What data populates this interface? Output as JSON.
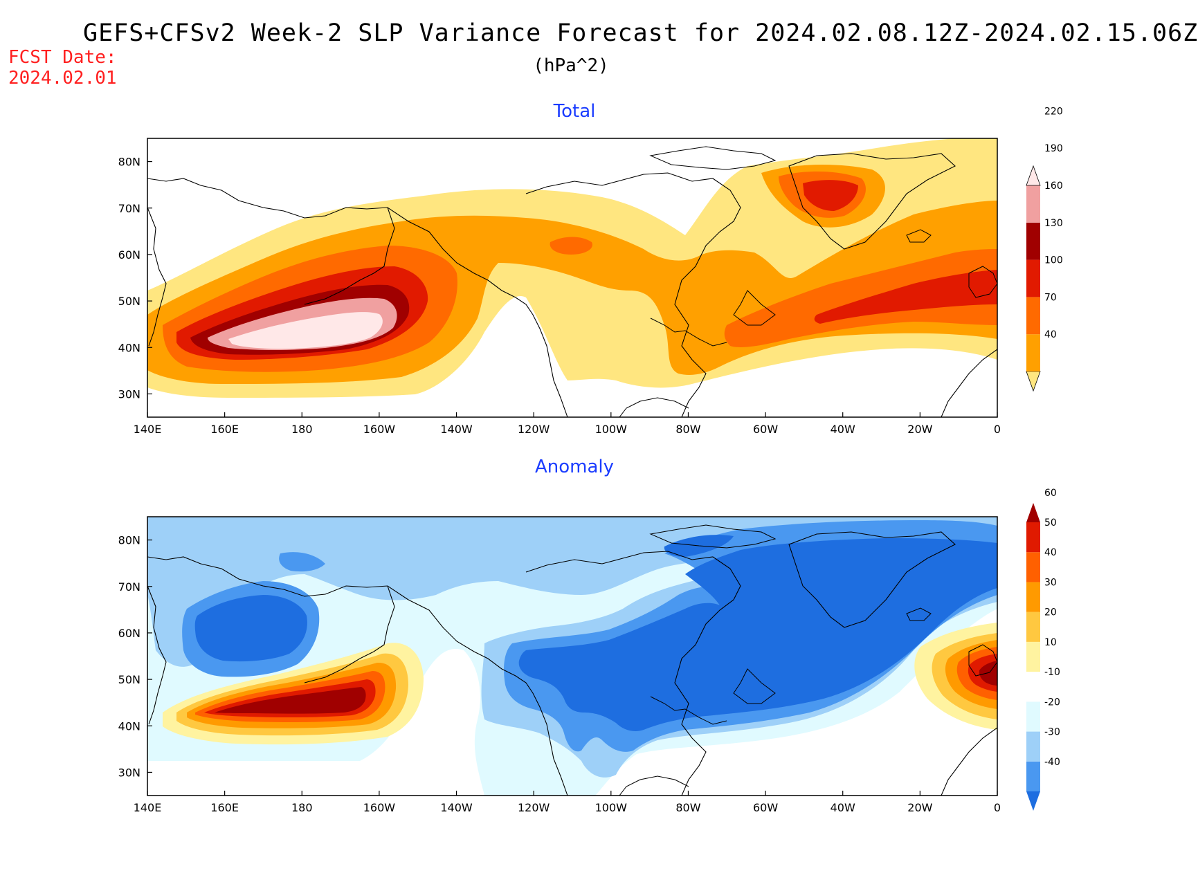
{
  "title": "GEFS+CFSv2 Week-2 SLP Variance Forecast for 2024.02.08.12Z-2024.02.15.06Z",
  "units": "(hPa^2)",
  "fcst_date": {
    "label": "FCST Date:",
    "value": "2024.02.01"
  },
  "lon_labels": [
    "140E",
    "160E",
    "180",
    "160W",
    "140W",
    "120W",
    "100W",
    "80W",
    "60W",
    "40W",
    "20W",
    "0"
  ],
  "lat_labels": [
    "30N",
    "40N",
    "50N",
    "60N",
    "70N",
    "80N"
  ],
  "panels": [
    {
      "id": "total",
      "title": "Total",
      "colorbar": {
        "levels": [
          "40",
          "70",
          "100",
          "130",
          "160",
          "190",
          "220"
        ],
        "colors": [
          "#ffe680",
          "#ffa000",
          "#ff6a00",
          "#e11a00",
          "#a00000",
          "#f0a0a0",
          "#ffe8e8"
        ]
      }
    },
    {
      "id": "anomaly",
      "title": "Anomaly",
      "colorbar": {
        "levels": [
          "-40",
          "-30",
          "-20",
          "-10",
          "10",
          "20",
          "30",
          "40",
          "50",
          "60"
        ],
        "colors": [
          "#1e6ee0",
          "#4a98f0",
          "#9ed0f8",
          "#e0faff",
          "#ffffff",
          "#fff3a0",
          "#ffc840",
          "#ff9a00",
          "#ff6000",
          "#e01a00",
          "#a00000"
        ]
      }
    }
  ]
}
